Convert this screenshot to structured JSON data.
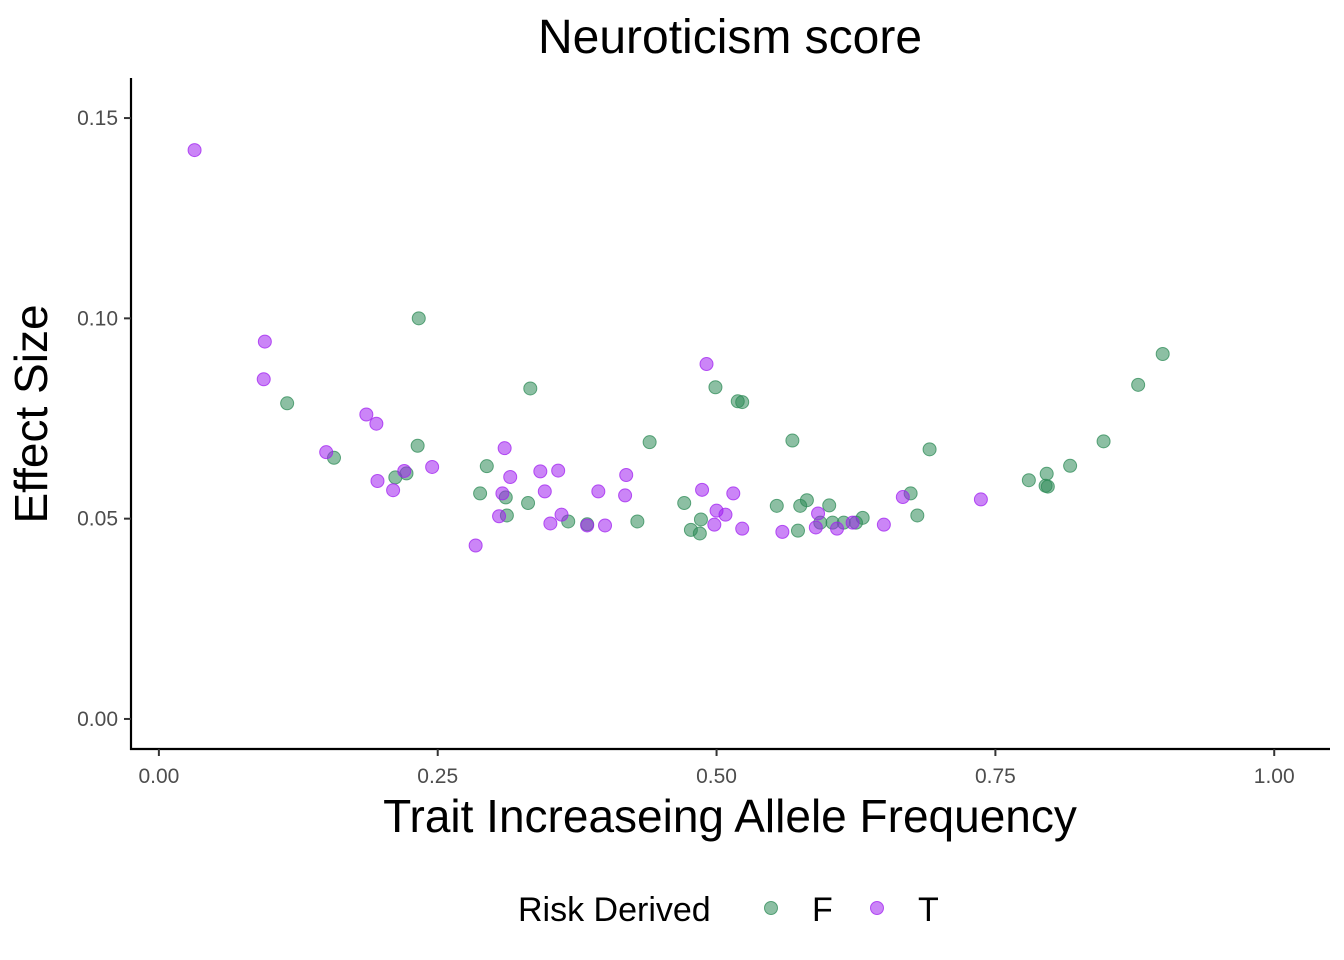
{
  "chart_data": {
    "type": "scatter",
    "title": "Neuroticism score",
    "xlabel": "Trait Increaseing Allele Frequency",
    "ylabel": "Effect Size",
    "xlim": [
      -0.025,
      1.05
    ],
    "ylim": [
      -0.0075,
      0.16
    ],
    "x_ticks": [
      0.0,
      0.25,
      0.5,
      0.75,
      1.0
    ],
    "x_tick_labels": [
      "0.00",
      "0.25",
      "0.50",
      "0.75",
      "1.00"
    ],
    "y_ticks": [
      0.0,
      0.05,
      0.1,
      0.15
    ],
    "y_tick_labels": [
      "0.00",
      "0.05",
      "0.10",
      "0.15"
    ],
    "grid": false,
    "legend": {
      "title": "Risk Derived",
      "position": "bottom",
      "entries": [
        {
          "label": "F",
          "color": "#2e8b57"
        },
        {
          "label": "T",
          "color": "#a020f0"
        }
      ]
    },
    "series": [
      {
        "name": "F",
        "color": "#2e8b57",
        "points": [
          [
            0.115,
            0.0788
          ],
          [
            0.157,
            0.0652
          ],
          [
            0.212,
            0.0603
          ],
          [
            0.222,
            0.0613
          ],
          [
            0.232,
            0.0682
          ],
          [
            0.233,
            0.1
          ],
          [
            0.288,
            0.0563
          ],
          [
            0.294,
            0.0631
          ],
          [
            0.311,
            0.0553
          ],
          [
            0.312,
            0.0508
          ],
          [
            0.331,
            0.0539
          ],
          [
            0.333,
            0.0825
          ],
          [
            0.367,
            0.0493
          ],
          [
            0.384,
            0.0486
          ],
          [
            0.429,
            0.0493
          ],
          [
            0.44,
            0.0691
          ],
          [
            0.471,
            0.0539
          ],
          [
            0.477,
            0.0472
          ],
          [
            0.485,
            0.0463
          ],
          [
            0.486,
            0.0498
          ],
          [
            0.499,
            0.0828
          ],
          [
            0.519,
            0.0793
          ],
          [
            0.523,
            0.0791
          ],
          [
            0.554,
            0.0532
          ],
          [
            0.568,
            0.0695
          ],
          [
            0.573,
            0.047
          ],
          [
            0.575,
            0.0532
          ],
          [
            0.581,
            0.0546
          ],
          [
            0.593,
            0.049
          ],
          [
            0.601,
            0.0533
          ],
          [
            0.604,
            0.049
          ],
          [
            0.614,
            0.049
          ],
          [
            0.625,
            0.049
          ],
          [
            0.631,
            0.0502
          ],
          [
            0.674,
            0.0563
          ],
          [
            0.68,
            0.0508
          ],
          [
            0.691,
            0.0673
          ],
          [
            0.78,
            0.0596
          ],
          [
            0.795,
            0.0582
          ],
          [
            0.796,
            0.0612
          ],
          [
            0.797,
            0.058
          ],
          [
            0.817,
            0.0632
          ],
          [
            0.847,
            0.0693
          ],
          [
            0.878,
            0.0834
          ],
          [
            0.9,
            0.0911
          ]
        ]
      },
      {
        "name": "T",
        "color": "#a020f0",
        "points": [
          [
            0.032,
            0.142
          ],
          [
            0.094,
            0.0848
          ],
          [
            0.095,
            0.0942
          ],
          [
            0.15,
            0.0666
          ],
          [
            0.186,
            0.076
          ],
          [
            0.195,
            0.0737
          ],
          [
            0.196,
            0.0594
          ],
          [
            0.21,
            0.0571
          ],
          [
            0.22,
            0.0619
          ],
          [
            0.245,
            0.0629
          ],
          [
            0.284,
            0.0433
          ],
          [
            0.305,
            0.0506
          ],
          [
            0.308,
            0.0563
          ],
          [
            0.31,
            0.0676
          ],
          [
            0.315,
            0.0604
          ],
          [
            0.342,
            0.0618
          ],
          [
            0.346,
            0.0568
          ],
          [
            0.351,
            0.0488
          ],
          [
            0.358,
            0.062
          ],
          [
            0.361,
            0.051
          ],
          [
            0.384,
            0.0483
          ],
          [
            0.394,
            0.0568
          ],
          [
            0.4,
            0.0483
          ],
          [
            0.418,
            0.0558
          ],
          [
            0.419,
            0.0609
          ],
          [
            0.487,
            0.0572
          ],
          [
            0.491,
            0.0886
          ],
          [
            0.498,
            0.0485
          ],
          [
            0.5,
            0.052
          ],
          [
            0.508,
            0.051
          ],
          [
            0.515,
            0.0563
          ],
          [
            0.523,
            0.0475
          ],
          [
            0.559,
            0.0467
          ],
          [
            0.589,
            0.0478
          ],
          [
            0.591,
            0.0513
          ],
          [
            0.608,
            0.0475
          ],
          [
            0.622,
            0.049
          ],
          [
            0.65,
            0.0485
          ],
          [
            0.667,
            0.0554
          ],
          [
            0.737,
            0.0548
          ]
        ]
      }
    ]
  }
}
